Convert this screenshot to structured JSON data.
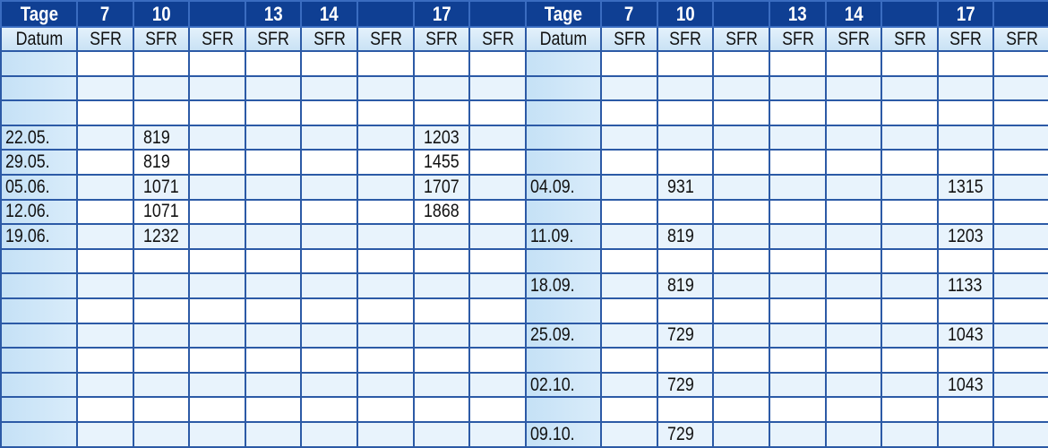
{
  "header": {
    "day_label": "Tage",
    "date_label": "Datum",
    "day_columns": [
      "7",
      "10",
      "",
      "13",
      "14",
      "",
      "17",
      ""
    ],
    "currency_label": "SFR"
  },
  "colors": {
    "header_dark": "#0f3f93",
    "row_light": "#e8f3fc",
    "border": "#2c5aa6"
  },
  "left": {
    "rows": [
      {
        "date": "",
        "values": [
          "",
          "",
          "",
          "",
          "",
          "",
          "",
          ""
        ]
      },
      {
        "date": "",
        "values": [
          "",
          "",
          "",
          "",
          "",
          "",
          "",
          ""
        ]
      },
      {
        "date": "",
        "values": [
          "",
          "",
          "",
          "",
          "",
          "",
          "",
          ""
        ]
      },
      {
        "date": "22.05.",
        "values": [
          "",
          "819",
          "",
          "",
          "",
          "",
          "1203",
          ""
        ]
      },
      {
        "date": "29.05.",
        "values": [
          "",
          "819",
          "",
          "",
          "",
          "",
          "1455",
          ""
        ]
      },
      {
        "date": "05.06.",
        "values": [
          "",
          "1071",
          "",
          "",
          "",
          "",
          "1707",
          ""
        ]
      },
      {
        "date": "12.06.",
        "values": [
          "",
          "1071",
          "",
          "",
          "",
          "",
          "1868",
          ""
        ]
      },
      {
        "date": "19.06.",
        "values": [
          "",
          "1232",
          "",
          "",
          "",
          "",
          "",
          ""
        ]
      },
      {
        "date": "",
        "values": [
          "",
          "",
          "",
          "",
          "",
          "",
          "",
          ""
        ]
      },
      {
        "date": "",
        "values": [
          "",
          "",
          "",
          "",
          "",
          "",
          "",
          ""
        ]
      },
      {
        "date": "",
        "values": [
          "",
          "",
          "",
          "",
          "",
          "",
          "",
          ""
        ]
      },
      {
        "date": "",
        "values": [
          "",
          "",
          "",
          "",
          "",
          "",
          "",
          ""
        ]
      },
      {
        "date": "",
        "values": [
          "",
          "",
          "",
          "",
          "",
          "",
          "",
          ""
        ]
      },
      {
        "date": "",
        "values": [
          "",
          "",
          "",
          "",
          "",
          "",
          "",
          ""
        ]
      },
      {
        "date": "",
        "values": [
          "",
          "",
          "",
          "",
          "",
          "",
          "",
          ""
        ]
      },
      {
        "date": "",
        "values": [
          "",
          "",
          "",
          "",
          "",
          "",
          "",
          ""
        ]
      }
    ]
  },
  "right": {
    "rows": [
      {
        "date": "",
        "values": [
          "",
          "",
          "",
          "",
          "",
          "",
          "",
          ""
        ]
      },
      {
        "date": "",
        "values": [
          "",
          "",
          "",
          "",
          "",
          "",
          "",
          ""
        ]
      },
      {
        "date": "",
        "values": [
          "",
          "",
          "",
          "",
          "",
          "",
          "",
          ""
        ]
      },
      {
        "date": "",
        "values": [
          "",
          "",
          "",
          "",
          "",
          "",
          "",
          ""
        ]
      },
      {
        "date": "",
        "values": [
          "",
          "",
          "",
          "",
          "",
          "",
          "",
          ""
        ]
      },
      {
        "date": "04.09.",
        "values": [
          "",
          "931",
          "",
          "",
          "",
          "",
          "1315",
          ""
        ]
      },
      {
        "date": "",
        "values": [
          "",
          "",
          "",
          "",
          "",
          "",
          "",
          ""
        ]
      },
      {
        "date": "11.09.",
        "values": [
          "",
          "819",
          "",
          "",
          "",
          "",
          "1203",
          ""
        ]
      },
      {
        "date": "",
        "values": [
          "",
          "",
          "",
          "",
          "",
          "",
          "",
          ""
        ]
      },
      {
        "date": "18.09.",
        "values": [
          "",
          "819",
          "",
          "",
          "",
          "",
          "1133",
          ""
        ]
      },
      {
        "date": "",
        "values": [
          "",
          "",
          "",
          "",
          "",
          "",
          "",
          ""
        ]
      },
      {
        "date": "25.09.",
        "values": [
          "",
          "729",
          "",
          "",
          "",
          "",
          "1043",
          ""
        ]
      },
      {
        "date": "",
        "values": [
          "",
          "",
          "",
          "",
          "",
          "",
          "",
          ""
        ]
      },
      {
        "date": "02.10.",
        "values": [
          "",
          "729",
          "",
          "",
          "",
          "",
          "1043",
          ""
        ]
      },
      {
        "date": "",
        "values": [
          "",
          "",
          "",
          "",
          "",
          "",
          "",
          ""
        ]
      },
      {
        "date": "09.10.",
        "values": [
          "",
          "729",
          "",
          "",
          "",
          "",
          "",
          ""
        ]
      }
    ]
  }
}
